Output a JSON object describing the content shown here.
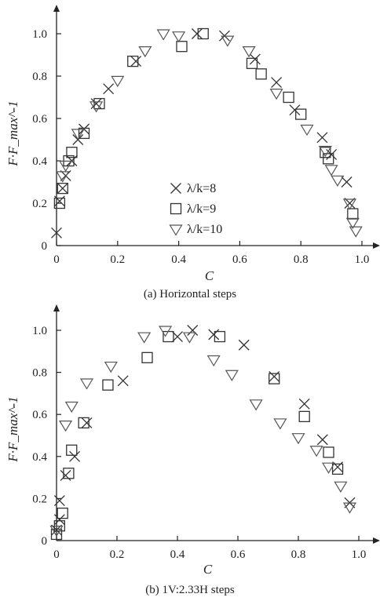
{
  "chart_data": [
    {
      "type": "scatter",
      "title": "",
      "caption": "(a) Horizontal steps",
      "xlabel": "C",
      "ylabel": "F·F_max^-1",
      "xlim": [
        0,
        1.05
      ],
      "ylim": [
        0,
        1.05
      ],
      "xticks": [
        "0",
        "0.2",
        "0.4",
        "0.6",
        "0.8",
        "1.0"
      ],
      "yticks": [
        "0",
        "0.2",
        "0.4",
        "0.6",
        "0.8",
        "1.0"
      ],
      "legend": {
        "placement": "bottom-center",
        "entries": [
          "λ/k=8",
          "λ/k=9",
          "λ/k=10"
        ]
      },
      "series": [
        {
          "name": "λ/k=8",
          "marker": "x",
          "points": [
            [
              0.0,
              0.06
            ],
            [
              0.01,
              0.21
            ],
            [
              0.02,
              0.27
            ],
            [
              0.03,
              0.33
            ],
            [
              0.05,
              0.4
            ],
            [
              0.07,
              0.5
            ],
            [
              0.09,
              0.55
            ],
            [
              0.13,
              0.67
            ],
            [
              0.17,
              0.74
            ],
            [
              0.26,
              0.87
            ],
            [
              0.46,
              1.0
            ],
            [
              0.55,
              0.99
            ],
            [
              0.65,
              0.88
            ],
            [
              0.72,
              0.77
            ],
            [
              0.78,
              0.64
            ],
            [
              0.87,
              0.51
            ],
            [
              0.9,
              0.43
            ],
            [
              0.95,
              0.3
            ],
            [
              0.96,
              0.2
            ]
          ]
        },
        {
          "name": "λ/k=9",
          "marker": "square",
          "points": [
            [
              0.01,
              0.2
            ],
            [
              0.02,
              0.27
            ],
            [
              0.04,
              0.4
            ],
            [
              0.05,
              0.44
            ],
            [
              0.09,
              0.53
            ],
            [
              0.14,
              0.67
            ],
            [
              0.25,
              0.87
            ],
            [
              0.41,
              0.94
            ],
            [
              0.48,
              1.0
            ],
            [
              0.64,
              0.86
            ],
            [
              0.67,
              0.81
            ],
            [
              0.76,
              0.7
            ],
            [
              0.8,
              0.62
            ],
            [
              0.88,
              0.44
            ],
            [
              0.89,
              0.41
            ],
            [
              0.97,
              0.15
            ]
          ]
        },
        {
          "name": "λ/k=10",
          "marker": "triangle-down",
          "points": [
            [
              0.02,
              0.33
            ],
            [
              0.03,
              0.38
            ],
            [
              0.07,
              0.53
            ],
            [
              0.13,
              0.66
            ],
            [
              0.2,
              0.78
            ],
            [
              0.29,
              0.92
            ],
            [
              0.35,
              1.0
            ],
            [
              0.4,
              0.99
            ],
            [
              0.56,
              0.97
            ],
            [
              0.63,
              0.92
            ],
            [
              0.72,
              0.72
            ],
            [
              0.82,
              0.55
            ],
            [
              0.88,
              0.45
            ],
            [
              0.9,
              0.36
            ],
            [
              0.92,
              0.31
            ],
            [
              0.96,
              0.2
            ],
            [
              0.97,
              0.11
            ],
            [
              0.98,
              0.07
            ]
          ]
        }
      ]
    },
    {
      "type": "scatter",
      "title": "",
      "caption": "(b) 1V:2.33H steps",
      "xlabel": "C",
      "ylabel": "F·F_max^-1",
      "xlim": [
        0,
        1.05
      ],
      "ylim": [
        0,
        1.05
      ],
      "xticks": [
        "0",
        "0.2",
        "0.4",
        "0.6",
        "0.8",
        "1.0"
      ],
      "yticks": [
        "0",
        "0.2",
        "0.4",
        "0.6",
        "0.8",
        "1.0"
      ],
      "series": [
        {
          "name": "λ/k=8",
          "marker": "x",
          "points": [
            [
              0.0,
              0.05
            ],
            [
              0.01,
              0.1
            ],
            [
              0.01,
              0.19
            ],
            [
              0.03,
              0.31
            ],
            [
              0.06,
              0.4
            ],
            [
              0.1,
              0.56
            ],
            [
              0.22,
              0.76
            ],
            [
              0.4,
              0.97
            ],
            [
              0.45,
              1.0
            ],
            [
              0.52,
              0.98
            ],
            [
              0.62,
              0.93
            ],
            [
              0.72,
              0.78
            ],
            [
              0.82,
              0.65
            ],
            [
              0.88,
              0.48
            ],
            [
              0.93,
              0.35
            ],
            [
              0.97,
              0.18
            ]
          ]
        },
        {
          "name": "λ/k=9",
          "marker": "square",
          "points": [
            [
              0.0,
              0.03
            ],
            [
              0.01,
              0.07
            ],
            [
              0.02,
              0.13
            ],
            [
              0.04,
              0.32
            ],
            [
              0.05,
              0.43
            ],
            [
              0.09,
              0.56
            ],
            [
              0.17,
              0.74
            ],
            [
              0.3,
              0.87
            ],
            [
              0.37,
              0.97
            ],
            [
              0.54,
              0.97
            ],
            [
              0.72,
              0.77
            ],
            [
              0.82,
              0.59
            ],
            [
              0.9,
              0.42
            ],
            [
              0.93,
              0.34
            ]
          ]
        },
        {
          "name": "λ/k=10",
          "marker": "triangle-down",
          "points": [
            [
              0.0,
              0.05
            ],
            [
              0.03,
              0.55
            ],
            [
              0.05,
              0.64
            ],
            [
              0.1,
              0.75
            ],
            [
              0.18,
              0.83
            ],
            [
              0.29,
              0.97
            ],
            [
              0.36,
              1.0
            ],
            [
              0.44,
              0.97
            ],
            [
              0.52,
              0.86
            ],
            [
              0.58,
              0.79
            ],
            [
              0.66,
              0.65
            ],
            [
              0.74,
              0.56
            ],
            [
              0.8,
              0.49
            ],
            [
              0.86,
              0.43
            ],
            [
              0.9,
              0.35
            ],
            [
              0.94,
              0.26
            ],
            [
              0.97,
              0.16
            ]
          ]
        }
      ]
    }
  ]
}
